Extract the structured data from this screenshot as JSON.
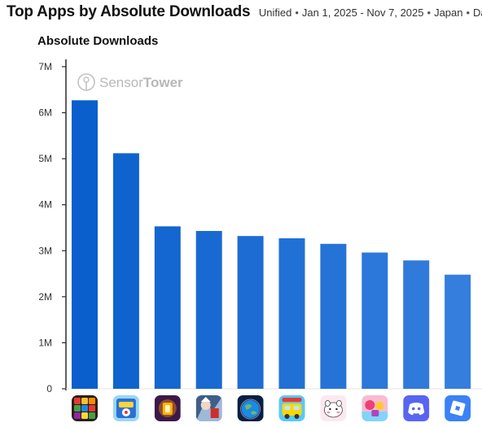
{
  "header": {
    "title": "Top Apps by Absolute Downloads",
    "filters": [
      "Unified",
      "Jan 1, 2025 - Nov 7, 2025",
      "Japan",
      "Daily"
    ]
  },
  "chart_data": {
    "type": "bar",
    "title": "Absolute Downloads",
    "xlabel": "",
    "ylabel": "",
    "ylim": [
      0,
      7000000
    ],
    "yticks": [
      {
        "value": 0,
        "label": "0"
      },
      {
        "value": 1000000,
        "label": "1M"
      },
      {
        "value": 2000000,
        "label": "2M"
      },
      {
        "value": 3000000,
        "label": "3M"
      },
      {
        "value": 4000000,
        "label": "4M"
      },
      {
        "value": 5000000,
        "label": "5M"
      },
      {
        "value": 6000000,
        "label": "6M"
      },
      {
        "value": 7000000,
        "label": "7M"
      }
    ],
    "grid": false,
    "values": [
      6270000,
      5120000,
      3530000,
      3430000,
      3320000,
      3270000,
      3150000,
      2960000,
      2790000,
      2480000
    ],
    "bar_colors": [
      "#0a5fcc",
      "#0f63ce",
      "#1466d0",
      "#1869d2",
      "#1c6cd4",
      "#2170d6",
      "#2673d8",
      "#2b77da",
      "#307adc",
      "#357edd"
    ],
    "app_icons": [
      "block-puzzle-app-icon",
      "pokemon-tcg-app-icon",
      "lantern-game-app-icon",
      "anime-rpg-app-icon",
      "earth-globe-app-icon",
      "bus-puzzle-app-icon",
      "chiikawa-app-icon",
      "pink-sweets-app-icon",
      "discord-app-icon",
      "roblox-app-icon"
    ]
  },
  "watermark": {
    "brand_light": "Sensor",
    "brand_bold": "Tower"
  }
}
